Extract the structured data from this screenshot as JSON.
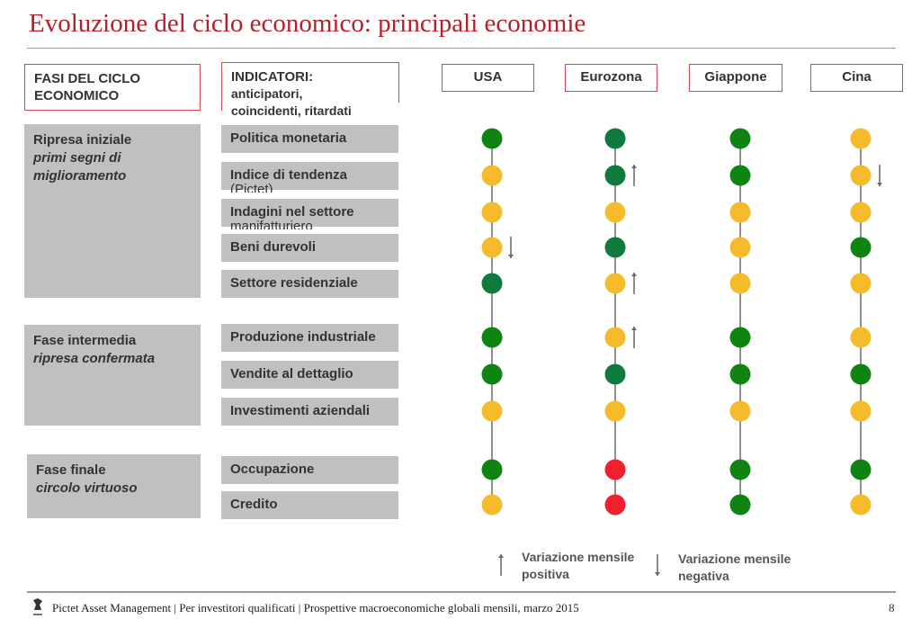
{
  "title": "Evoluzione del ciclo economico: principali economie",
  "headers": {
    "phases": [
      "FASI DEL CICLO",
      "ECONOMICO"
    ],
    "indicators_title": "INDICATORI:",
    "indicators_sub1": "anticipatori,",
    "indicators_sub2": "coincidenti, ritardati"
  },
  "countries": [
    "USA",
    "Eurozona",
    "Giappone",
    "Cina"
  ],
  "phases": [
    {
      "name": "Ripresa iniziale",
      "desc1": "primi segni di",
      "desc2": "miglioramento"
    },
    {
      "name": "Fase intermedia",
      "desc1": "ripresa confermata",
      "desc2": ""
    },
    {
      "name": "Fase finale",
      "desc1": "circolo virtuoso",
      "desc2": ""
    }
  ],
  "indicators": [
    {
      "label": "Politica monetaria",
      "sub": ""
    },
    {
      "label": "Indice di tendenza",
      "sub": "(Pictet)"
    },
    {
      "label": "Indagini nel settore",
      "sub": "manifatturiero"
    },
    {
      "label": "Beni durevoli",
      "sub": ""
    },
    {
      "label": "Settore residenziale",
      "sub": ""
    },
    {
      "label": "Produzione industriale",
      "sub": ""
    },
    {
      "label": "Vendite al dettaglio",
      "sub": ""
    },
    {
      "label": "Investimenti aziendali",
      "sub": ""
    },
    {
      "label": "Occupazione",
      "sub": ""
    },
    {
      "label": "Credito",
      "sub": ""
    }
  ],
  "colors": {
    "G": "#0f8412",
    "D": "#0e7a3e",
    "Y": "#f5bb2a",
    "R": "#f0202e",
    "accent": "#b5202b"
  },
  "status": {
    "USA": [
      "G",
      "Y",
      "Y",
      "Y",
      "D",
      "G",
      "G",
      "Y",
      "G",
      "Y"
    ],
    "Eurozona": [
      "D",
      "D",
      "Y",
      "D",
      "Y",
      "Y",
      "D",
      "Y",
      "R",
      "R"
    ],
    "Giappone": [
      "G",
      "G",
      "Y",
      "Y",
      "Y",
      "G",
      "G",
      "Y",
      "G",
      "G"
    ],
    "Cina": [
      "Y",
      "Y",
      "Y",
      "G",
      "Y",
      "Y",
      "G",
      "Y",
      "G",
      "Y"
    ]
  },
  "trends": {
    "USA": [
      "",
      "",
      "",
      "down",
      "",
      "",
      "",
      "",
      "",
      ""
    ],
    "Eurozona": [
      "",
      "up",
      "",
      "",
      "up",
      "up",
      "",
      "",
      "",
      ""
    ],
    "Giappone": [
      "",
      "",
      "",
      "",
      "",
      "",
      "",
      "",
      "",
      ""
    ],
    "Cina": [
      "",
      "down",
      "",
      "",
      "",
      "",
      "",
      "",
      "",
      ""
    ]
  },
  "legend": {
    "positive_1": "Variazione mensile",
    "positive_2": "positiva",
    "negative_1": "Variazione mensile",
    "negative_2": "negativa"
  },
  "footer": {
    "text": "Pictet Asset Management  |  Per investitori qualificati  |  Prospettive macroeconomiche globali mensili, marzo 2015",
    "page": "8",
    "logo_text": "1805"
  }
}
